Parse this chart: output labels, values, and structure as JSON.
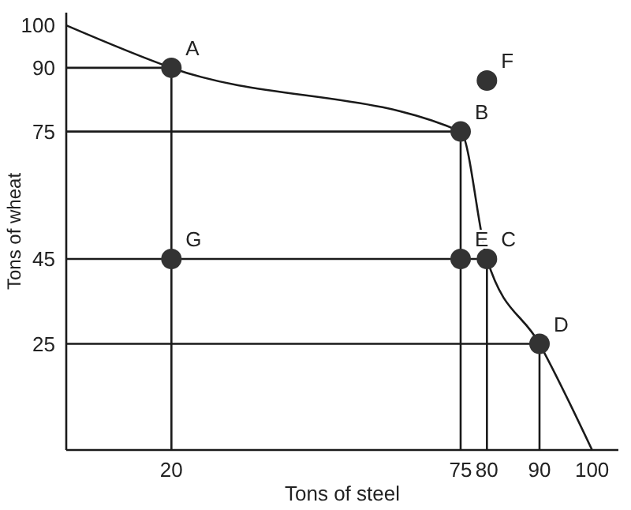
{
  "chart_data": {
    "type": "line",
    "xlabel": "Tons of steel",
    "ylabel": "Tons of wheat",
    "xlim": [
      0,
      105
    ],
    "ylim": [
      0,
      103
    ],
    "xticks": [
      20,
      75,
      80,
      90,
      100
    ],
    "yticks": [
      25,
      45,
      75,
      90,
      100
    ],
    "grid": false,
    "marker": "circle",
    "line_style": "solid",
    "series": [
      {
        "color": "#1a1a1a",
        "marker": "none",
        "x": [
          0,
          20,
          75,
          80,
          90,
          100
        ],
        "values": [
          100,
          90,
          75,
          45,
          25,
          0
        ]
      },
      {
        "type": "line",
        "color": "#1a1a1a",
        "marker": "none",
        "x": [
          0,
          20,
          20
        ],
        "values": [
          90,
          90,
          0
        ]
      },
      {
        "type": "line",
        "color": "#1a1a1a",
        "marker": "none",
        "x": [
          0,
          75,
          75
        ],
        "values": [
          75,
          75,
          0
        ]
      },
      {
        "type": "line",
        "color": "#1a1a1a",
        "marker": "none",
        "x": [
          0,
          80,
          80
        ],
        "values": [
          45,
          45,
          0
        ]
      },
      {
        "type": "line",
        "color": "#1a1a1a",
        "marker": "none",
        "x": [
          0,
          90,
          90
        ],
        "values": [
          25,
          25,
          0
        ]
      },
      {
        "type": "scatter",
        "color": "#333333",
        "x": [
          20,
          75,
          80,
          90,
          75,
          20,
          80
        ],
        "values": [
          90,
          75,
          45,
          25,
          45,
          45,
          87
        ]
      }
    ],
    "annotations": [
      {
        "text": "A",
        "x": 20,
        "y": 90
      },
      {
        "text": "B",
        "x": 75,
        "y": 75
      },
      {
        "text": "C",
        "x": 80,
        "y": 45
      },
      {
        "text": "D",
        "x": 90,
        "y": 25
      },
      {
        "text": "E",
        "x": 75,
        "y": 45
      },
      {
        "text": "G",
        "x": 20,
        "y": 45
      },
      {
        "text": "F",
        "x": 80,
        "y": 87
      }
    ]
  }
}
